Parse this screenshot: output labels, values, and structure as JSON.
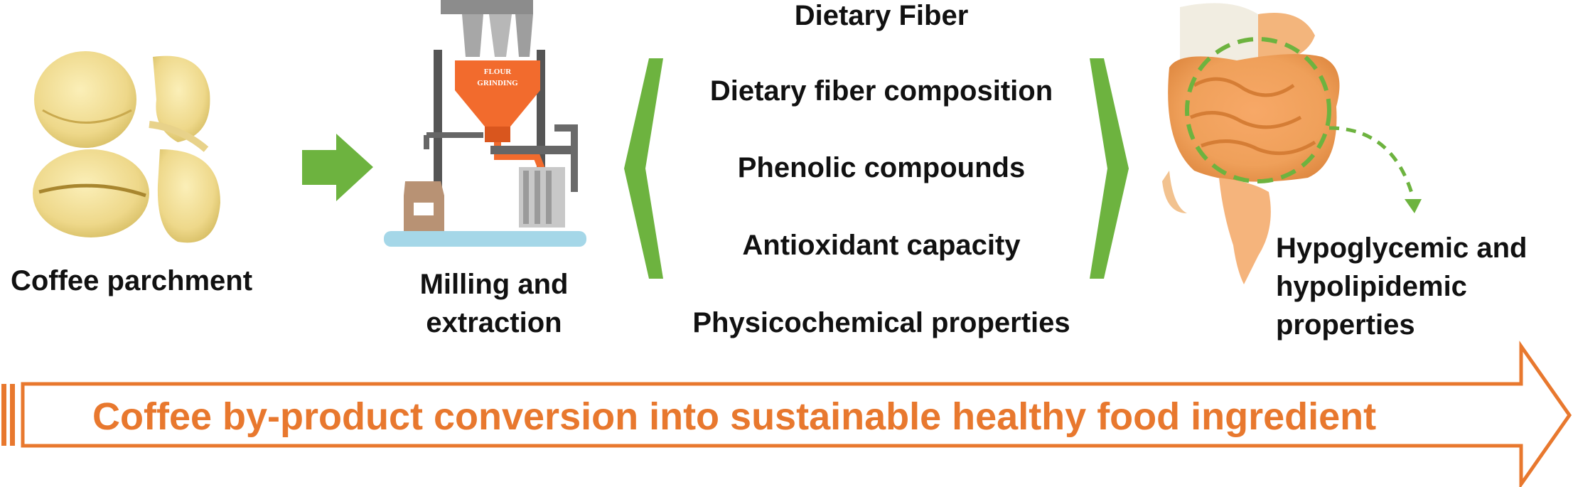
{
  "stages": {
    "parchment_label": "Coffee parchment",
    "milling_label_line1": "Milling and",
    "milling_label_line2": "extraction",
    "machine_sign_line1": "FLOUR",
    "machine_sign_line2": "GRINDING",
    "outcome_line1": "Hypoglycemic and",
    "outcome_line2": "hypolipidemic",
    "outcome_line3": "properties"
  },
  "properties": [
    "Dietary Fiber",
    "Dietary fiber composition",
    "Phenolic compounds",
    "Antioxidant capacity",
    "Physicochemical properties"
  ],
  "banner": {
    "text": "Coffee by-product conversion into sustainable healthy food ingredient"
  },
  "colors": {
    "accent_orange": "#E8782E",
    "accent_green": "#6DB33F",
    "text": "#111111"
  },
  "icons": {
    "flow_arrow": "green-right-arrow-icon",
    "bracket_left": "green-angle-bracket-left-icon",
    "bracket_right": "green-angle-bracket-right-icon"
  }
}
